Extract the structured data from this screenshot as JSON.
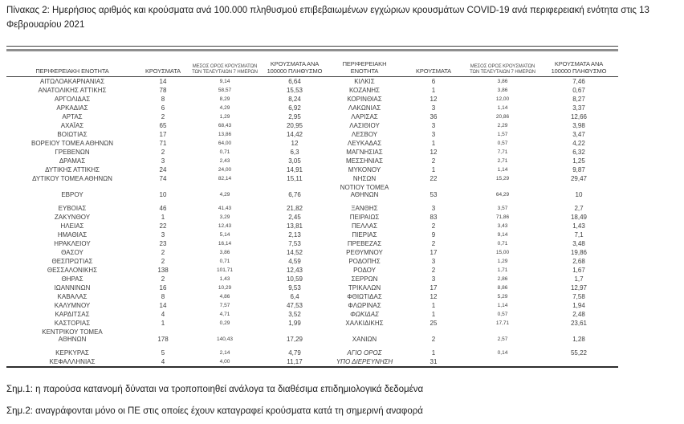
{
  "page": {
    "title": "Πίνακας 2: Ημερήσιος αριθμός και κρούσματα ανά 100.000 πληθυσμού επιβεβαιωμένων εγχώριων κρουσμάτων COVID-19 ανά περιφερειακή ενότητα στις 13 Φεβρουαρίου 2021"
  },
  "table": {
    "headers": {
      "region_left": "ΠΕΡΙΦΕΡΕΙΑΚΗ ΕΝΟΤΗΤΑ",
      "cases_left": "ΚΡΟΥΣΜΑΤΑ",
      "avg_left": "ΜΕΣΟΣ ΟΡΟΣ ΚΡΟΥΣΜΑΤΩΝ\nΤΩΝ ΤΕΛΕΥΤΑΙΩΝ 7 ΗΜΕΡΩΝ",
      "rate_left": "ΚΡΟΥΣΜΑΤΑ ΑΝΑ\n100000 ΠΛΗΘΥΣΜΟ",
      "region_right": "ΠΕΡΙΦΕΡΕΙΑΚΗ\nΕΝΟΤΗΤΑ",
      "cases_right": "ΚΡΟΥΣΜΑΤΑ",
      "avg_right": "ΜΕΣΟΣ ΟΡΟΣ ΚΡΟΥΣΜΑΤΩΝ\nΤΩΝ ΤΕΛΕΥΤΑΙΩΝ 7 ΗΜΕΡΩΝ",
      "rate_right": "ΚΡΟΥΣΜΑΤΑ ΑΝΑ\n100000 ΠΛΗΘΥΣΜΟ"
    },
    "rows": [
      {
        "left": [
          "ΑΙΤΩΛΟΑΚΑΡΝΑΝΙΑΣ",
          "14",
          "9,14",
          "6,64"
        ],
        "right": [
          "ΚΙΛΚΙΣ",
          "6",
          "3,86",
          "7,46"
        ]
      },
      {
        "left": [
          "ΑΝΑΤΟΛΙΚΗΣ ΑΤΤΙΚΗΣ",
          "78",
          "58,57",
          "15,53"
        ],
        "right": [
          "ΚΟΖΑΝΗΣ",
          "1",
          "3,86",
          "0,67"
        ]
      },
      {
        "left": [
          "ΑΡΓΟΛΙΔΑΣ",
          "8",
          "8,29",
          "8,24"
        ],
        "right": [
          "ΚΟΡΙΝΘΙΑΣ",
          "12",
          "12,00",
          "8,27"
        ]
      },
      {
        "left": [
          "ΑΡΚΑΔΙΑΣ",
          "6",
          "4,29",
          "6,92"
        ],
        "right": [
          "ΛΑΚΩΝΙΑΣ",
          "3",
          "1,14",
          "3,37"
        ]
      },
      {
        "left": [
          "ΑΡΤΑΣ",
          "2",
          "1,29",
          "2,95"
        ],
        "right": [
          "ΛΑΡΙΣΑΣ",
          "36",
          "20,86",
          "12,66"
        ]
      },
      {
        "left": [
          "ΑΧΑΪΑΣ",
          "65",
          "68,43",
          "20,95"
        ],
        "right": [
          "ΛΑΣΙΘΙΟΥ",
          "3",
          "2,29",
          "3,98"
        ]
      },
      {
        "left": [
          "ΒΟΙΩΤΙΑΣ",
          "17",
          "13,86",
          "14,42"
        ],
        "right": [
          "ΛΕΣΒΟΥ",
          "3",
          "1,57",
          "3,47"
        ]
      },
      {
        "left": [
          "ΒΟΡΕΙΟΥ ΤΟΜΕΑ ΑΘΗΝΩΝ",
          "71",
          "64,00",
          "12"
        ],
        "right": [
          "ΛΕΥΚΑΔΑΣ",
          "1",
          "0,57",
          "4,22"
        ]
      },
      {
        "left": [
          "ΓΡΕΒΕΝΩΝ",
          "2",
          "0,71",
          "6,3"
        ],
        "right": [
          "ΜΑΓΝΗΣΙΑΣ",
          "12",
          "7,71",
          "6,32"
        ]
      },
      {
        "left": [
          "ΔΡΑΜΑΣ",
          "3",
          "2,43",
          "3,05"
        ],
        "right": [
          "ΜΕΣΣΗΝΙΑΣ",
          "2",
          "2,71",
          "1,25"
        ]
      },
      {
        "left": [
          "ΔΥΤΙΚΗΣ ΑΤΤΙΚΗΣ",
          "24",
          "24,00",
          "14,91"
        ],
        "right": [
          "ΜΥΚΟΝΟΥ",
          "1",
          "1,14",
          "9,87"
        ]
      },
      {
        "left": [
          "ΔΥΤΙΚΟΥ ΤΟΜΕΑ ΑΘΗΝΩΝ",
          "74",
          "82,14",
          "15,11"
        ],
        "right": [
          "ΝΗΣΩΝ",
          "22",
          "15,29",
          "29,47"
        ]
      },
      {
        "left": [
          "ΕΒΡΟΥ",
          "10",
          "4,29",
          "6,76"
        ],
        "right": [
          "ΝΟΤΙΟΥ ΤΟΜΕΑ\nΑΘΗΝΩΝ",
          "53",
          "64,29",
          "10"
        ],
        "gap_below": true
      },
      {
        "left": [
          "ΕΥΒΟΙΑΣ",
          "46",
          "41,43",
          "21,82"
        ],
        "right": [
          "ΞΑΝΘΗΣ",
          "3",
          "3,57",
          "2,7"
        ]
      },
      {
        "left": [
          "ΖΑΚΥΝΘΟΥ",
          "1",
          "3,29",
          "2,45"
        ],
        "right": [
          "ΠΕΙΡΑΙΩΣ",
          "83",
          "71,86",
          "18,49"
        ]
      },
      {
        "left": [
          "ΗΛΕΙΑΣ",
          "22",
          "12,43",
          "13,81"
        ],
        "right": [
          "ΠΕΛΛΑΣ",
          "2",
          "3,43",
          "1,43"
        ]
      },
      {
        "left": [
          "ΗΜΑΘΙΑΣ",
          "3",
          "5,14",
          "2,13"
        ],
        "right": [
          "ΠΙΕΡΙΑΣ",
          "9",
          "9,14",
          "7,1"
        ]
      },
      {
        "left": [
          "ΗΡΑΚΛΕΙΟΥ",
          "23",
          "16,14",
          "7,53"
        ],
        "right": [
          "ΠΡΕΒΕΖΑΣ",
          "2",
          "0,71",
          "3,48"
        ]
      },
      {
        "left": [
          "ΘΑΣΟΥ",
          "2",
          "3,86",
          "14,52"
        ],
        "right": [
          "ΡΕΘΥΜΝΟΥ",
          "17",
          "15,00",
          "19,86"
        ]
      },
      {
        "left": [
          "ΘΕΣΠΡΩΤΙΑΣ",
          "2",
          "0,71",
          "4,59"
        ],
        "right": [
          "ΡΟΔΟΠΗΣ",
          "3",
          "1,29",
          "2,68"
        ]
      },
      {
        "left": [
          "ΘΕΣΣΑΛΟΝΙΚΗΣ",
          "138",
          "101,71",
          "12,43"
        ],
        "right": [
          "ΡΟΔΟΥ",
          "2",
          "1,71",
          "1,67"
        ]
      },
      {
        "left": [
          "ΘΗΡΑΣ",
          "2",
          "1,43",
          "10,59"
        ],
        "right": [
          "ΣΕΡΡΩΝ",
          "3",
          "2,86",
          "1,7"
        ]
      },
      {
        "left": [
          "ΙΩΑΝΝΙΝΩΝ",
          "16",
          "10,29",
          "9,53"
        ],
        "right": [
          "ΤΡΙΚΑΛΩΝ",
          "17",
          "8,86",
          "12,97"
        ]
      },
      {
        "left": [
          "ΚΑΒΑΛΑΣ",
          "8",
          "4,86",
          "6,4"
        ],
        "right": [
          "ΦΘΙΩΤΙΔΑΣ",
          "12",
          "5,29",
          "7,58"
        ]
      },
      {
        "left": [
          "ΚΑΛΥΜΝΟΥ",
          "14",
          "7,57",
          "47,53"
        ],
        "right": [
          "ΦΛΩΡΙΝΑΣ",
          "1",
          "1,14",
          "1,94"
        ]
      },
      {
        "left": [
          "ΚΑΡΔΙΤΣΑΣ",
          "4",
          "4,71",
          "3,52"
        ],
        "right": [
          "ΦΩΚΙΔΑΣ",
          "1",
          "0,57",
          "2,48"
        ],
        "right_italic": true
      },
      {
        "left": [
          "ΚΑΣΤΟΡΙΑΣ",
          "1",
          "0,29",
          "1,99"
        ],
        "right": [
          "ΧΑΛΚΙΔΙΚΗΣ",
          "25",
          "17,71",
          "23,61"
        ]
      },
      {
        "left": [
          "ΚΕΝΤΡΙΚΟΥ ΤΟΜΕΑ\nΑΘΗΝΩΝ",
          "178",
          "140,43",
          "17,29"
        ],
        "right": [
          "ΧΑΝΙΩΝ",
          "2",
          "2,57",
          "1,28"
        ],
        "gap_below": true
      },
      {
        "left": [
          "ΚΕΡΚΥΡΑΣ",
          "5",
          "2,14",
          "4,79"
        ],
        "right": [
          "ΑΓΙΟ ΟΡΟΣ",
          "1",
          "0,14",
          "55,22"
        ],
        "right_italic": true
      },
      {
        "left": [
          "ΚΕΦΑΛΛΗΝΙΑΣ",
          "4",
          "4,00",
          "11,17"
        ],
        "right": [
          "ΥΠΟ ΔΙΕΡΕΥΝΗΣΗ",
          "31",
          "",
          ""
        ],
        "right_italic": true
      }
    ]
  },
  "notes": {
    "note1": "Σημ.1: η παρούσα κατανομή δύναται να τροποποιηθεί ανάλογα τα διαθέσιμα επιδημιολογικά δεδομένα",
    "note2": "Σημ.2: αναγράφονται μόνο οι ΠΕ στις οποίες έχουν καταγραφεί κρούσματα κατά τη σημερινή αναφορά"
  },
  "colors": {
    "text": "#3d3d3d",
    "title_text": "#202020",
    "rule_dark": "#3f3f3f",
    "rule_gray": "#8e8e8e"
  }
}
